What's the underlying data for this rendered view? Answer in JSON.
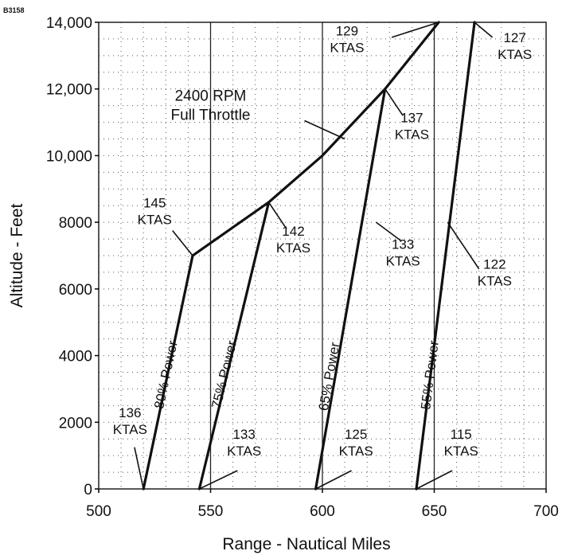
{
  "figure_id": "B3158",
  "chart_data": {
    "type": "line",
    "title": "",
    "xlabel": "Range - Nautical Miles",
    "ylabel": "Altitude - Feet",
    "xlim": [
      500,
      700
    ],
    "ylim": [
      0,
      14000
    ],
    "x_ticks": [
      {
        "value": 500,
        "label": "500"
      },
      {
        "value": 550,
        "label": "550"
      },
      {
        "value": 600,
        "label": "600"
      },
      {
        "value": 650,
        "label": "650"
      },
      {
        "value": 700,
        "label": "700"
      }
    ],
    "y_ticks": [
      {
        "value": 0,
        "label": "0"
      },
      {
        "value": 2000,
        "label": "2000"
      },
      {
        "value": 4000,
        "label": "4000"
      },
      {
        "value": 6000,
        "label": "6000"
      },
      {
        "value": 8000,
        "label": "8000"
      },
      {
        "value": 10000,
        "label": "10,000"
      },
      {
        "value": 12000,
        "label": "12,000"
      },
      {
        "value": 14000,
        "label": "14,000"
      }
    ],
    "grid": true,
    "series": [
      {
        "name": "80% Power",
        "points": [
          [
            520,
            0
          ],
          [
            542,
            7000
          ]
        ]
      },
      {
        "name": "75% Power",
        "points": [
          [
            545,
            0
          ],
          [
            576,
            8600
          ]
        ]
      },
      {
        "name": "65% Power",
        "points": [
          [
            597,
            0
          ],
          [
            628,
            12000
          ]
        ]
      },
      {
        "name": "55% Power",
        "points": [
          [
            642,
            0
          ],
          [
            668,
            14000
          ]
        ]
      },
      {
        "name": "2400 RPM Full Throttle",
        "points": [
          [
            542,
            7000
          ],
          [
            576,
            8600
          ],
          [
            600,
            10000
          ],
          [
            628,
            12000
          ],
          [
            652,
            14000
          ]
        ]
      }
    ],
    "annotations": [
      {
        "id": "rpm",
        "lines": [
          "2400 RPM",
          "Full Throttle"
        ],
        "anchor": [
          610,
          10500
        ],
        "text_at": [
          550,
          11650
        ],
        "leader_from": [
          592,
          11050
        ]
      },
      {
        "id": "k129",
        "lines": [
          "129",
          "KTAS"
        ],
        "anchor": [
          652,
          14000
        ],
        "text_at": [
          611,
          13600
        ],
        "leader_from": [
          631,
          13550
        ]
      },
      {
        "id": "k127",
        "lines": [
          "127",
          "KTAS"
        ],
        "anchor": [
          668,
          14000
        ],
        "text_at": [
          686,
          13400
        ],
        "leader_from": [
          676,
          13550
        ]
      },
      {
        "id": "k137",
        "lines": [
          "137",
          "KTAS"
        ],
        "anchor": [
          628,
          12000
        ],
        "text_at": [
          640,
          11000
        ],
        "leader_from": [
          636,
          11200
        ]
      },
      {
        "id": "k145",
        "lines": [
          "145",
          "KTAS"
        ],
        "anchor": [
          542,
          7000
        ],
        "text_at": [
          525,
          8450
        ],
        "leader_from": [
          533,
          7750
        ]
      },
      {
        "id": "k142",
        "lines": [
          "142",
          "KTAS"
        ],
        "anchor": [
          576,
          8600
        ],
        "text_at": [
          587,
          7600
        ],
        "leader_from": [
          584,
          7800
        ]
      },
      {
        "id": "k133h",
        "lines": [
          "133",
          "KTAS"
        ],
        "anchor": [
          624,
          8000
        ],
        "text_at": [
          636,
          7200
        ],
        "leader_from": [
          635,
          7450
        ]
      },
      {
        "id": "k122",
        "lines": [
          "122",
          "KTAS"
        ],
        "anchor": [
          656,
          8000
        ],
        "text_at": [
          677,
          6600
        ],
        "leader_from": [
          670,
          6600
        ]
      },
      {
        "id": "k136",
        "lines": [
          "136",
          "KTAS"
        ],
        "anchor": [
          520,
          0
        ],
        "text_at": [
          514,
          2150
        ],
        "leader_from": [
          516,
          1250
        ]
      },
      {
        "id": "k133l",
        "lines": [
          "133",
          "KTAS"
        ],
        "anchor": [
          545,
          0
        ],
        "text_at": [
          565,
          1500
        ],
        "leader_from": [
          562,
          550
        ]
      },
      {
        "id": "k125",
        "lines": [
          "125",
          "KTAS"
        ],
        "anchor": [
          597,
          0
        ],
        "text_at": [
          615,
          1500
        ],
        "leader_from": [
          613,
          550
        ]
      },
      {
        "id": "k115",
        "lines": [
          "115",
          "KTAS"
        ],
        "anchor": [
          642,
          0
        ],
        "text_at": [
          662,
          1500
        ],
        "leader_from": [
          658,
          550
        ]
      }
    ],
    "line_labels": [
      {
        "id": "p80",
        "text": "80% Power",
        "at": [
          532,
          3400
        ],
        "along": [
          [
            520,
            0
          ],
          [
            542,
            7000
          ]
        ]
      },
      {
        "id": "p75",
        "text": "75% Power",
        "at": [
          558,
          3400
        ],
        "along": [
          [
            545,
            0
          ],
          [
            576,
            8600
          ]
        ]
      },
      {
        "id": "p65",
        "text": "65% Power",
        "at": [
          605,
          3350
        ],
        "along": [
          [
            597,
            0
          ],
          [
            628,
            12000
          ]
        ]
      },
      {
        "id": "p55",
        "text": "55% Power",
        "at": [
          650,
          3400
        ],
        "along": [
          [
            642,
            0
          ],
          [
            668,
            14000
          ]
        ]
      }
    ]
  }
}
